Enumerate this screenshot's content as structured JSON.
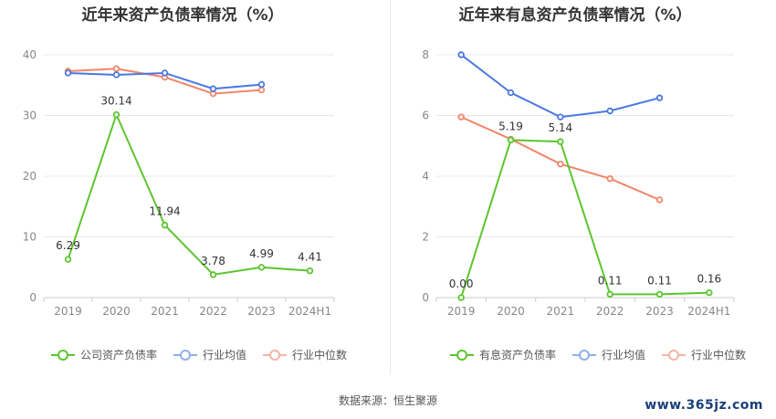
{
  "source_label": "数据来源：恒生聚源",
  "watermark": "www.365jz.com",
  "chart_data": [
    {
      "type": "line",
      "title": "近年来资产负债率情况（%）",
      "xlabel": "",
      "ylabel": "",
      "categories": [
        "2019",
        "2020",
        "2021",
        "2022",
        "2023",
        "2024H1"
      ],
      "ylim": [
        0,
        40
      ],
      "yticks": [
        0,
        10,
        20,
        30,
        40
      ],
      "grid": true,
      "legend_position": "bottom-center",
      "series": [
        {
          "name": "公司资产负债率",
          "color": "#5cc52f",
          "values": [
            6.29,
            30.14,
            11.94,
            3.78,
            4.99,
            4.41
          ],
          "labels": [
            "6.29",
            "30.14",
            "11.94",
            "3.78",
            "4.99",
            "4.41"
          ]
        },
        {
          "name": "行业均值",
          "color": "#4a78e0",
          "values": [
            37.0,
            36.7,
            37.0,
            34.4,
            35.1,
            null
          ]
        },
        {
          "name": "行业中位数",
          "color": "#f0866a",
          "values": [
            37.3,
            37.7,
            36.3,
            33.6,
            34.2,
            null
          ]
        }
      ]
    },
    {
      "type": "line",
      "title": "近年来有息资产负债率情况（%）",
      "xlabel": "",
      "ylabel": "",
      "categories": [
        "2019",
        "2020",
        "2021",
        "2022",
        "2023",
        "2024H1"
      ],
      "ylim": [
        0,
        8
      ],
      "yticks": [
        0,
        2,
        4,
        6,
        8
      ],
      "grid": true,
      "legend_position": "bottom-center",
      "series": [
        {
          "name": "有息资产负债率",
          "color": "#5cc52f",
          "values": [
            0.0,
            5.19,
            5.14,
            0.11,
            0.11,
            0.16
          ],
          "labels": [
            "0.00",
            "5.19",
            "5.14",
            "0.11",
            "0.11",
            "0.16"
          ]
        },
        {
          "name": "行业均值",
          "color": "#4a78e0",
          "values": [
            8.0,
            6.75,
            5.95,
            6.15,
            6.58,
            null
          ]
        },
        {
          "name": "行业中位数",
          "color": "#f0866a",
          "values": [
            5.95,
            5.22,
            4.4,
            3.92,
            3.22,
            null
          ]
        }
      ]
    }
  ]
}
